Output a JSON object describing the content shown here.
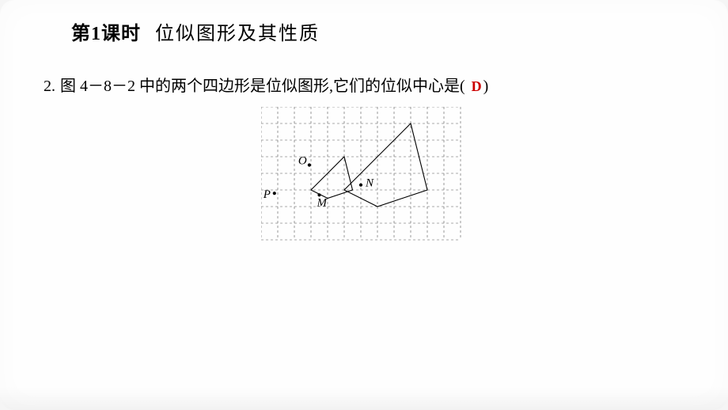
{
  "header": {
    "lesson_label": "第1课时",
    "lesson_title": "位似图形及其性质"
  },
  "question": {
    "number": "2.",
    "text_prefix": "图 4－8－2 中的两个四边形是位似图形,它们的位似中心是(",
    "text_suffix": ")",
    "answer": "D"
  },
  "figure": {
    "type": "diagram",
    "grid": {
      "cols": 12,
      "rows": 8,
      "cell_size": 21,
      "origin_x": 0,
      "origin_y": 0,
      "stroke_color": "#555555",
      "stroke_width": 0.6,
      "dash": "3,3"
    },
    "points": {
      "P": {
        "gx": 0.8,
        "gy": 5.2,
        "label_dx": -14,
        "label_dy": 6
      },
      "O": {
        "gx": 2.9,
        "gy": 3.5,
        "label_dx": -14,
        "label_dy": -1
      },
      "M": {
        "gx": 3.5,
        "gy": 5.3,
        "label_dx": -3,
        "label_dy": 14
      },
      "N": {
        "gx": 6.0,
        "gy": 4.7,
        "label_dx": 6,
        "label_dy": 2
      }
    },
    "small_quad": {
      "vertices": [
        {
          "gx": 3.0,
          "gy": 5.0
        },
        {
          "gx": 5.0,
          "gy": 3.0
        },
        {
          "gx": 5.5,
          "gy": 5.0
        },
        {
          "gx": 4.0,
          "gy": 5.5
        }
      ],
      "stroke": "#000000",
      "stroke_width": 1.1
    },
    "large_quad": {
      "vertices": [
        {
          "gx": 5.0,
          "gy": 5.0
        },
        {
          "gx": 9.0,
          "gy": 1.0
        },
        {
          "gx": 10.0,
          "gy": 5.0
        },
        {
          "gx": 7.0,
          "gy": 6.0
        }
      ],
      "stroke": "#000000",
      "stroke_width": 1.1
    },
    "label_font_family": "Times New Roman",
    "label_font_style": "italic",
    "label_font_size": 15,
    "point_radius": 2.1,
    "point_fill": "#000000"
  }
}
